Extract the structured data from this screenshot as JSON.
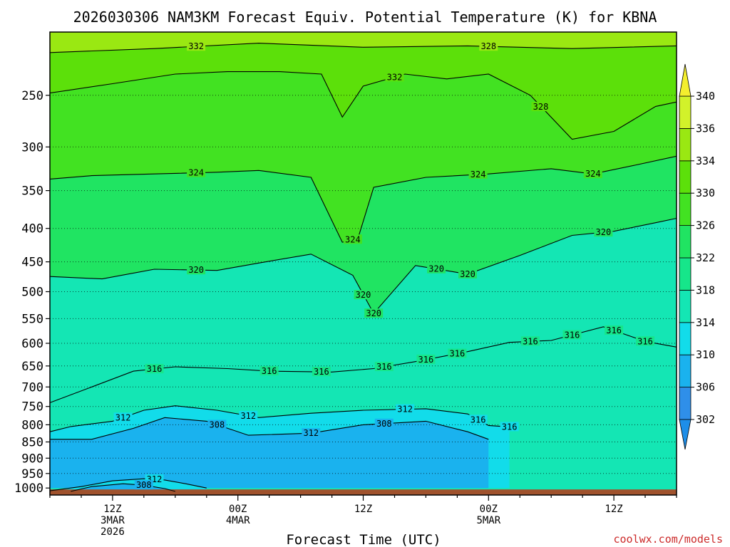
{
  "chart_data": {
    "type": "heatmap",
    "title": "2026030306 NAM3KM Forecast Equiv. Potential Temperature (K) for KBNA",
    "xlabel": "Forecast Time (UTC)",
    "ylabel": "",
    "credit": "coolwx.com/models",
    "x_ticks": [
      {
        "hour": 6,
        "lines": [
          "12Z",
          "3MAR",
          "2026"
        ]
      },
      {
        "hour": 18,
        "lines": [
          "00Z",
          "4MAR"
        ]
      },
      {
        "hour": 30,
        "lines": [
          "12Z",
          ""
        ]
      },
      {
        "hour": 42,
        "lines": [
          "00Z",
          "5MAR"
        ]
      },
      {
        "hour": 54,
        "lines": [
          "12Z",
          ""
        ]
      }
    ],
    "x_range_hours": [
      0,
      60
    ],
    "y_scale": "log",
    "y_range_hPa": [
      1025,
      200
    ],
    "y_ticks": [
      250,
      300,
      350,
      400,
      450,
      500,
      550,
      600,
      650,
      700,
      750,
      800,
      850,
      900,
      950,
      1000
    ],
    "colorbar": {
      "levels": [
        302,
        306,
        310,
        314,
        318,
        322,
        326,
        330,
        334,
        336,
        340
      ],
      "colors": [
        "#2f8fe9",
        "#1ab2ee",
        "#12dcea",
        "#14e6b4",
        "#16e68a",
        "#20e462",
        "#42e222",
        "#5ce00a",
        "#9ae812",
        "#d2f22a",
        "#f4ee2e"
      ],
      "arrow_below_color": "#1e8ee8",
      "arrow_above_color": "#f4ee2e"
    },
    "ground_color": "#a0522d",
    "grid": "dotted horizontal at pressure ticks",
    "contour_labels": [
      "332",
      "328",
      "332",
      "328",
      "324",
      "324",
      "324",
      "320",
      "320",
      "320",
      "316",
      "316",
      "316",
      "316",
      "316",
      "316",
      "312",
      "312",
      "312",
      "308",
      "308",
      "320",
      "320",
      "324",
      "316",
      "316",
      "316",
      "320",
      "316",
      "316",
      "316",
      "312",
      "308",
      "312"
    ],
    "series": [
      {
        "level": 332,
        "values": [
          [
            0,
            215
          ],
          [
            10,
            212
          ],
          [
            20,
            208
          ],
          [
            30,
            211
          ],
          [
            40,
            210
          ],
          [
            50,
            212
          ],
          [
            60,
            210
          ]
        ]
      },
      {
        "level": 328,
        "values": [
          [
            0,
            248
          ],
          [
            6,
            240
          ],
          [
            12,
            232
          ],
          [
            17,
            230
          ],
          [
            22,
            230
          ],
          [
            26,
            232
          ],
          [
            28,
            270
          ],
          [
            30,
            242
          ],
          [
            34,
            232
          ],
          [
            38,
            236
          ],
          [
            42,
            232
          ],
          [
            46,
            250
          ],
          [
            50,
            292
          ],
          [
            54,
            284
          ],
          [
            58,
            260
          ],
          [
            60,
            256
          ]
        ]
      },
      {
        "level": 324,
        "values": [
          [
            0,
            336
          ],
          [
            4,
            332
          ],
          [
            10,
            330
          ],
          [
            16,
            328
          ],
          [
            20,
            326
          ],
          [
            25,
            334
          ],
          [
            28,
            420
          ],
          [
            29.5,
            414
          ],
          [
            31,
            346
          ],
          [
            36,
            334
          ],
          [
            42,
            330
          ],
          [
            48,
            324
          ],
          [
            52,
            330
          ],
          [
            56,
            320
          ],
          [
            60,
            310
          ]
        ]
      },
      {
        "level": 320,
        "values": [
          [
            0,
            474
          ],
          [
            5,
            478
          ],
          [
            10,
            462
          ],
          [
            16,
            464
          ],
          [
            20,
            452
          ],
          [
            25,
            438
          ],
          [
            29,
            472
          ],
          [
            31,
            540
          ],
          [
            35,
            456
          ],
          [
            40,
            470
          ],
          [
            45,
            440
          ],
          [
            50,
            410
          ],
          [
            54,
            404
          ],
          [
            58,
            392
          ],
          [
            60,
            386
          ]
        ]
      },
      {
        "level": 316,
        "values": [
          [
            0,
            740
          ],
          [
            4,
            700
          ],
          [
            8,
            662
          ],
          [
            12,
            652
          ],
          [
            17,
            656
          ],
          [
            21,
            662
          ],
          [
            27,
            664
          ],
          [
            31,
            656
          ],
          [
            35,
            640
          ],
          [
            40,
            618
          ],
          [
            44,
            598
          ],
          [
            48,
            594
          ],
          [
            53,
            566
          ],
          [
            57,
            596
          ],
          [
            60,
            608
          ]
        ]
      },
      {
        "level": 312,
        "values": [
          [
            0,
            820
          ],
          [
            2,
            805
          ],
          [
            6,
            790
          ],
          [
            9,
            760
          ],
          [
            12,
            748
          ],
          [
            16,
            760
          ],
          [
            20,
            780
          ],
          [
            25,
            768
          ],
          [
            30,
            760
          ],
          [
            36,
            756
          ],
          [
            40,
            770
          ],
          [
            42,
            802
          ],
          [
            44,
            806
          ]
        ]
      },
      {
        "level": 308,
        "values": [
          [
            0,
            842
          ],
          [
            4,
            842
          ],
          [
            8,
            810
          ],
          [
            11,
            780
          ],
          [
            15,
            790
          ],
          [
            19,
            830
          ],
          [
            25,
            824
          ],
          [
            30,
            800
          ],
          [
            36,
            790
          ],
          [
            40,
            820
          ],
          [
            42,
            842
          ]
        ]
      },
      {
        "level": 312,
        "values": [
          [
            0,
            1010
          ],
          [
            3,
            995
          ],
          [
            6,
            975
          ],
          [
            9,
            968
          ],
          [
            11,
            972
          ],
          [
            13,
            985
          ],
          [
            15,
            1000
          ]
        ]
      },
      {
        "level": 308,
        "values": [
          [
            2,
            1012
          ],
          [
            4,
            995
          ],
          [
            7,
            985
          ],
          [
            9,
            990
          ],
          [
            11,
            1002
          ],
          [
            12,
            1012
          ]
        ]
      }
    ]
  }
}
